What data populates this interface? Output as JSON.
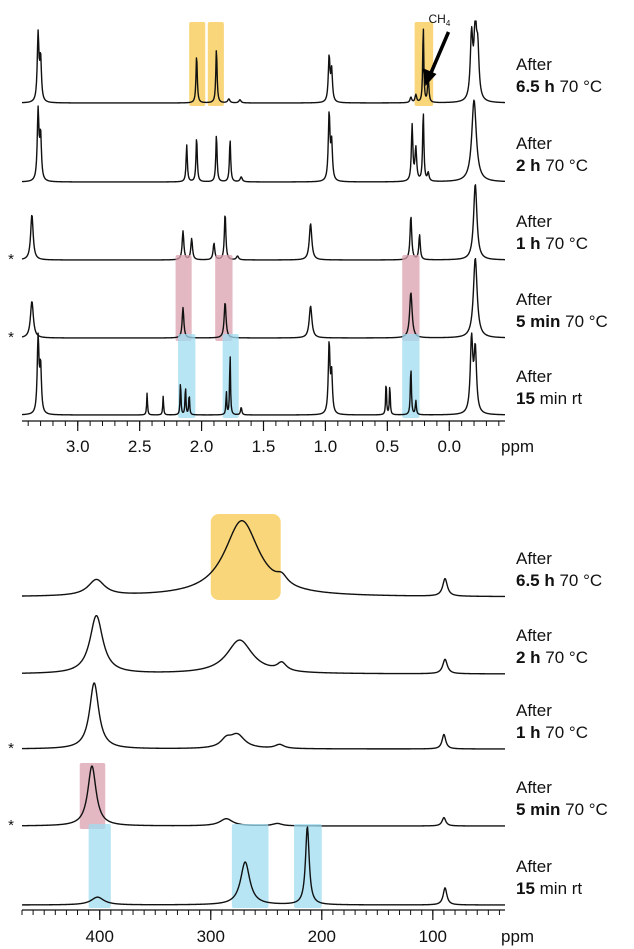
{
  "chart_data": [
    {
      "type": "line",
      "xunit": "ppm",
      "xlim": [
        3.45,
        -0.45
      ],
      "ticks": [
        3.0,
        2.5,
        2.0,
        1.5,
        1.0,
        0.5,
        0.0
      ],
      "tick_labels": [
        "3.0",
        "2.5",
        "2.0",
        "1.5",
        "1.0",
        "0.5",
        "0.0"
      ],
      "annotation": {
        "label": "CH",
        "sub": "4",
        "x": 0.2
      },
      "series": [
        {
          "label_line1": "After",
          "label_bold": "6.5 h",
          "label_rest": " 70 °C",
          "asterisk": "",
          "peaks": [
            [
              3.32,
              0.86,
              0.008
            ],
            [
              3.3,
              0.55,
              0.008
            ],
            [
              2.04,
              0.62,
              0.006
            ],
            [
              1.88,
              0.7,
              0.006
            ],
            [
              1.78,
              0.05,
              0.01
            ],
            [
              1.69,
              0.04,
              0.01
            ],
            [
              0.97,
              0.58,
              0.008
            ],
            [
              0.95,
              0.4,
              0.008
            ],
            [
              0.31,
              0.07,
              0.008
            ],
            [
              0.27,
              0.1,
              0.008
            ],
            [
              0.21,
              1.0,
              0.005
            ],
            [
              0.17,
              0.35,
              0.006
            ],
            [
              -0.18,
              0.82,
              0.012
            ],
            [
              -0.21,
              0.9,
              0.012
            ],
            [
              -0.23,
              0.6,
              0.012
            ]
          ],
          "highlights": [
            [
              2.1,
              1.97
            ],
            [
              1.95,
              1.82
            ],
            [
              0.28,
              0.13
            ]
          ],
          "highlight_color": "#f5c84c"
        },
        {
          "label_line1": "After",
          "label_bold": "2 h",
          "label_rest": " 70 °C",
          "asterisk": "",
          "peaks": [
            [
              3.32,
              0.85,
              0.008
            ],
            [
              3.3,
              0.55,
              0.008
            ],
            [
              2.12,
              0.45,
              0.006
            ],
            [
              2.04,
              0.55,
              0.006
            ],
            [
              1.88,
              0.58,
              0.006
            ],
            [
              1.77,
              0.52,
              0.006
            ],
            [
              1.68,
              0.06,
              0.01
            ],
            [
              0.97,
              0.82,
              0.008
            ],
            [
              0.95,
              0.45,
              0.008
            ],
            [
              0.3,
              0.68,
              0.007
            ],
            [
              0.27,
              0.4,
              0.008
            ],
            [
              0.21,
              0.85,
              0.006
            ],
            [
              0.17,
              0.1,
              0.008
            ],
            [
              -0.2,
              1.0,
              0.022
            ]
          ],
          "highlights": [],
          "highlight_color": ""
        },
        {
          "label_line1": "After",
          "label_bold": "1 h",
          "label_rest": " 70 °C",
          "asterisk": "*",
          "peaks": [
            [
              3.37,
              0.6,
              0.012
            ],
            [
              2.15,
              0.38,
              0.008
            ],
            [
              2.08,
              0.28,
              0.008
            ],
            [
              1.9,
              0.22,
              0.008
            ],
            [
              1.81,
              0.62,
              0.007
            ],
            [
              1.71,
              0.05,
              0.01
            ],
            [
              1.12,
              0.48,
              0.012
            ],
            [
              0.31,
              0.58,
              0.008
            ],
            [
              0.24,
              0.33,
              0.007
            ],
            [
              -0.21,
              1.0,
              0.016
            ]
          ],
          "highlights": [],
          "highlight_color": ""
        },
        {
          "label_line1": "After",
          "label_bold": "5 min",
          "label_rest": " 70 °C",
          "asterisk": "*",
          "peaks": [
            [
              3.37,
              0.46,
              0.014
            ],
            [
              2.15,
              0.38,
              0.008
            ],
            [
              1.81,
              0.45,
              0.009
            ],
            [
              1.12,
              0.4,
              0.013
            ],
            [
              0.31,
              0.57,
              0.012
            ],
            [
              -0.21,
              1.0,
              0.018
            ]
          ],
          "highlights": [
            [
              2.21,
              2.08
            ],
            [
              1.89,
              1.75
            ],
            [
              0.38,
              0.24
            ]
          ],
          "highlight_color": "#d9a0ae"
        },
        {
          "label_line1": "After",
          "label_bold": "15",
          "label_rest": " min rt",
          "asterisk": "",
          "peaks": [
            [
              3.32,
              1.0,
              0.008
            ],
            [
              3.3,
              0.6,
              0.008
            ],
            [
              2.44,
              0.28,
              0.004
            ],
            [
              2.31,
              0.24,
              0.004
            ],
            [
              2.17,
              0.45,
              0.004
            ],
            [
              2.13,
              0.38,
              0.004
            ],
            [
              2.1,
              0.28,
              0.004
            ],
            [
              1.8,
              0.3,
              0.004
            ],
            [
              1.77,
              0.82,
              0.004
            ],
            [
              1.68,
              0.1,
              0.006
            ],
            [
              0.97,
              0.9,
              0.008
            ],
            [
              0.95,
              0.5,
              0.008
            ],
            [
              0.51,
              0.45,
              0.004
            ],
            [
              0.48,
              0.4,
              0.004
            ],
            [
              0.31,
              0.62,
              0.005
            ],
            [
              0.27,
              0.18,
              0.005
            ],
            [
              -0.18,
              0.95,
              0.012
            ],
            [
              -0.21,
              0.8,
              0.012
            ]
          ],
          "highlights": [
            [
              2.19,
              2.05
            ],
            [
              1.83,
              1.7
            ],
            [
              0.38,
              0.24
            ]
          ],
          "highlight_color": "#9fdcf0"
        }
      ]
    },
    {
      "type": "line",
      "xunit": "ppm",
      "xlim": [
        470,
        35
      ],
      "ticks": [
        400,
        300,
        200,
        100
      ],
      "tick_labels": [
        "400",
        "300",
        "200",
        "100"
      ],
      "series": [
        {
          "label_line1": "After",
          "label_bold": "6.5 h",
          "label_rest": " 70 °C",
          "asterisk": "",
          "peaks": [
            [
              403,
              0.2,
              9
            ],
            [
              272,
              0.95,
              19
            ],
            [
              236,
              0.1,
              6
            ],
            [
              89,
              0.22,
              2.5
            ]
          ],
          "highlights": [
            [
              300,
              237
            ]
          ],
          "highlight_color": "#f5c84c"
        },
        {
          "label_line1": "After",
          "label_bold": "2 h",
          "label_rest": " 70 °C",
          "asterisk": "",
          "peaks": [
            [
              403,
              1.0,
              7
            ],
            [
              274,
              0.58,
              14
            ],
            [
              236,
              0.14,
              5
            ],
            [
              89,
              0.25,
              2.5
            ]
          ],
          "highlights": [],
          "highlight_color": ""
        },
        {
          "label_line1": "After",
          "label_bold": "1 h",
          "label_rest": " 70 °C",
          "asterisk": "*",
          "peaks": [
            [
              405,
              1.0,
              5
            ],
            [
              286,
              0.12,
              6
            ],
            [
              276,
              0.2,
              8
            ],
            [
              238,
              0.06,
              5
            ],
            [
              90,
              0.22,
              2
            ]
          ],
          "highlights": [],
          "highlight_color": ""
        },
        {
          "label_line1": "After",
          "label_bold": "5 min",
          "label_rest": " 70 °C",
          "asterisk": "*",
          "peaks": [
            [
              407,
              1.0,
              4.5
            ],
            [
              286,
              0.12,
              7
            ],
            [
              240,
              0.04,
              5
            ],
            [
              90,
              0.14,
              2
            ]
          ],
          "highlights": [
            [
              418,
              395
            ]
          ],
          "highlight_color": "#d9a0ae"
        },
        {
          "label_line1": "After",
          "label_bold": "15",
          "label_rest": " min rt",
          "asterisk": "",
          "peaks": [
            [
              402,
              0.1,
              7
            ],
            [
              269,
              0.55,
              5
            ],
            [
              213,
              1.0,
              2
            ],
            [
              89,
              0.22,
              2
            ]
          ],
          "highlights": [
            [
              410,
              390
            ],
            [
              281,
              248
            ],
            [
              225,
              200
            ]
          ],
          "highlight_color": "#9fdcf0"
        }
      ]
    }
  ]
}
